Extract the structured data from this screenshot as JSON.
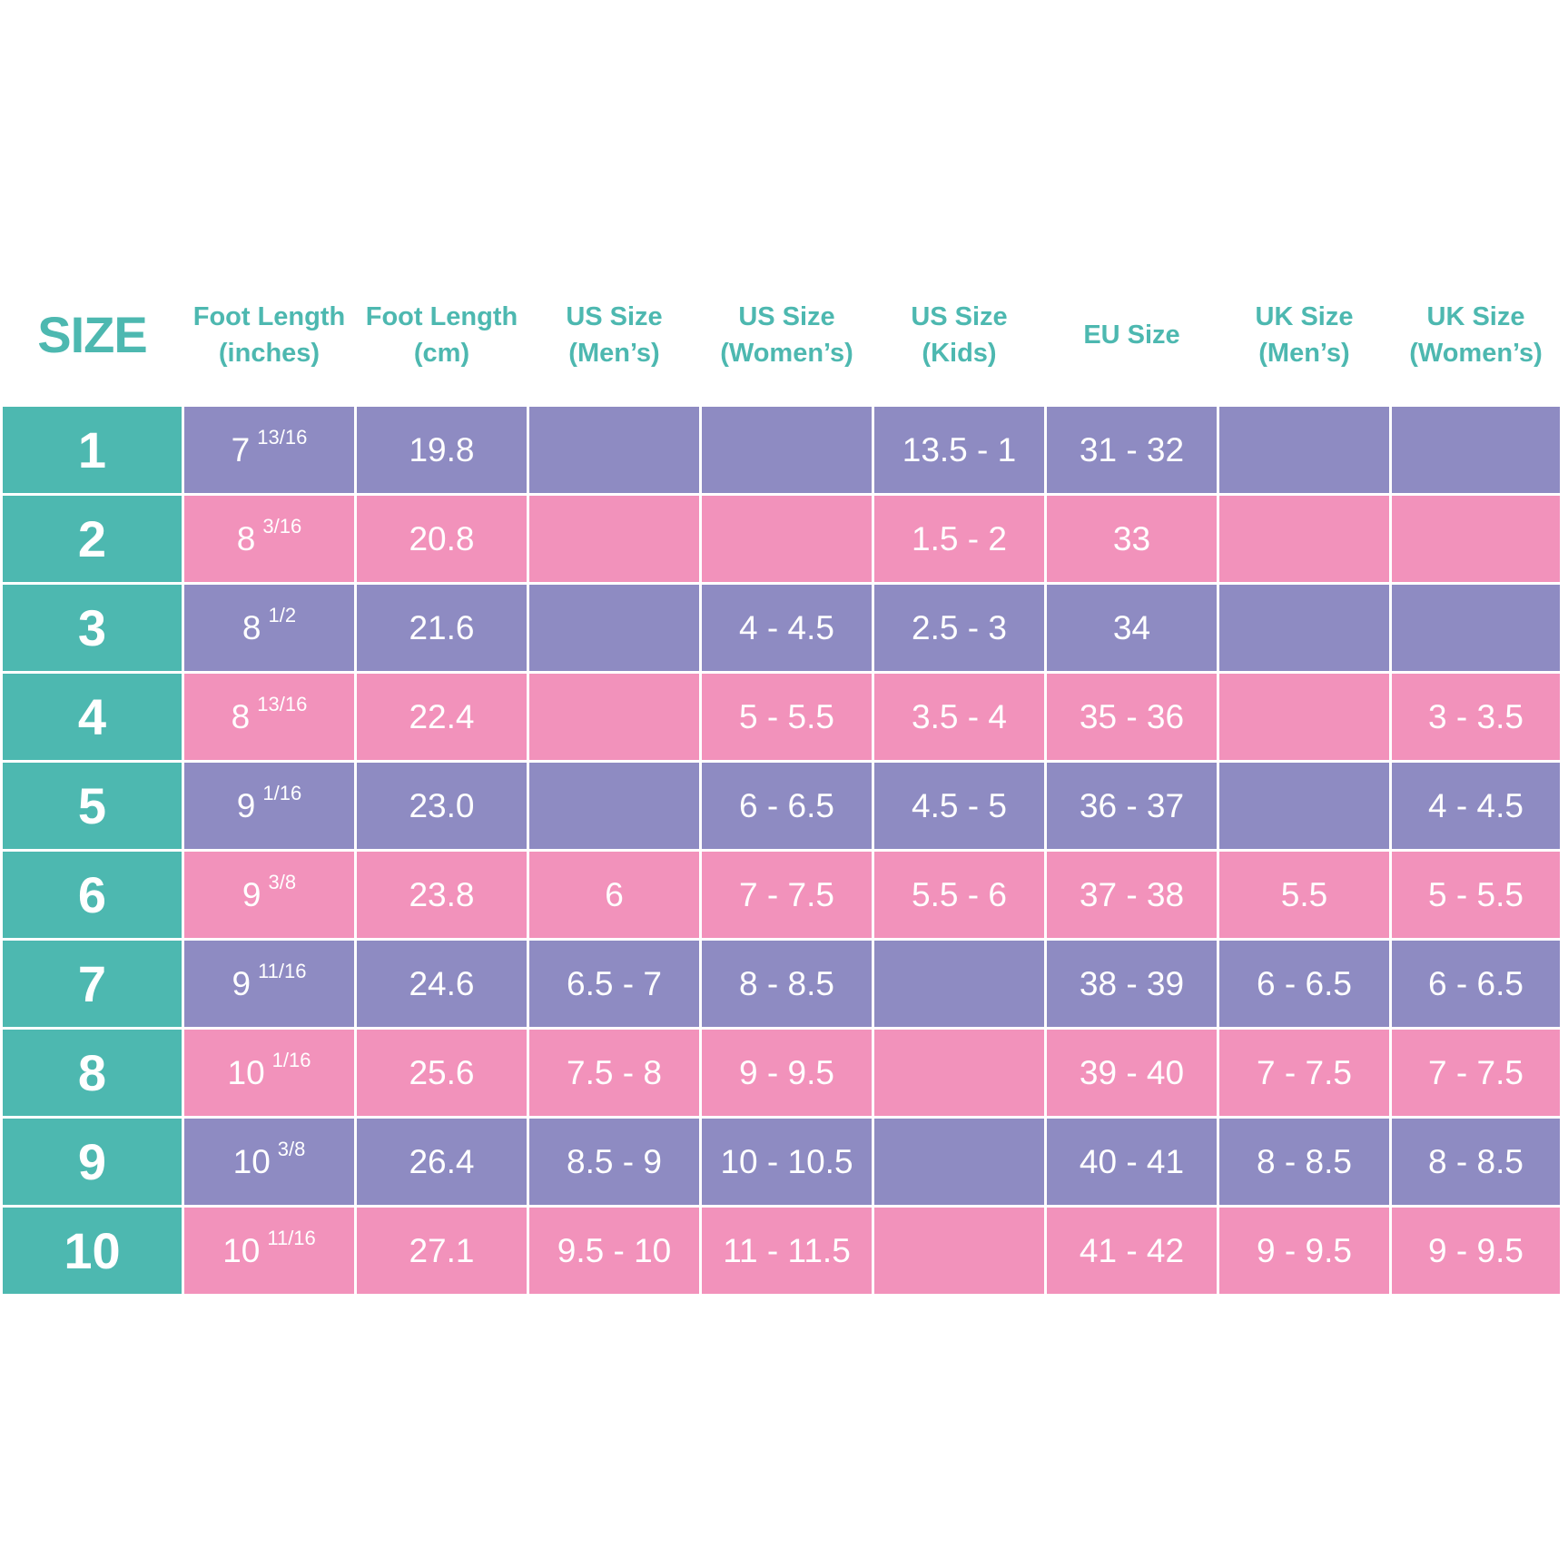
{
  "colors": {
    "teal": "#4db8b0",
    "purple": "#8e8bc2",
    "pink": "#f292bb"
  },
  "headers": [
    {
      "id": "size",
      "label": "SIZE"
    },
    {
      "id": "foot-length-inches",
      "label": "Foot Length\n(inches)"
    },
    {
      "id": "foot-length-cm",
      "label": "Foot Length\n(cm)"
    },
    {
      "id": "us-mens",
      "label": "US Size\n(Men’s)"
    },
    {
      "id": "us-womens",
      "label": "US Size\n(Women’s)"
    },
    {
      "id": "us-kids",
      "label": "US Size\n(Kids)"
    },
    {
      "id": "eu",
      "label": "EU Size"
    },
    {
      "id": "uk-mens",
      "label": "UK Size\n(Men’s)"
    },
    {
      "id": "uk-womens",
      "label": "UK Size\n(Women’s)"
    }
  ],
  "rows": [
    {
      "color": "purple",
      "size": "1",
      "inches_whole": "7",
      "inches_frac": "13/16",
      "cm": "19.8",
      "us_mens": "",
      "us_womens": "",
      "us_kids": "13.5 - 1",
      "eu": "31 - 32",
      "uk_mens": "",
      "uk_womens": ""
    },
    {
      "color": "pink",
      "size": "2",
      "inches_whole": "8",
      "inches_frac": "3/16",
      "cm": "20.8",
      "us_mens": "",
      "us_womens": "",
      "us_kids": "1.5 - 2",
      "eu": "33",
      "uk_mens": "",
      "uk_womens": ""
    },
    {
      "color": "purple",
      "size": "3",
      "inches_whole": "8",
      "inches_frac": "1/2",
      "cm": "21.6",
      "us_mens": "",
      "us_womens": "4 - 4.5",
      "us_kids": "2.5 - 3",
      "eu": "34",
      "uk_mens": "",
      "uk_womens": ""
    },
    {
      "color": "pink",
      "size": "4",
      "inches_whole": "8",
      "inches_frac": "13/16",
      "cm": "22.4",
      "us_mens": "",
      "us_womens": "5 - 5.5",
      "us_kids": "3.5 - 4",
      "eu": "35 - 36",
      "uk_mens": "",
      "uk_womens": "3 - 3.5"
    },
    {
      "color": "purple",
      "size": "5",
      "inches_whole": "9",
      "inches_frac": "1/16",
      "cm": "23.0",
      "us_mens": "",
      "us_womens": "6 - 6.5",
      "us_kids": "4.5 - 5",
      "eu": "36 - 37",
      "uk_mens": "",
      "uk_womens": "4 - 4.5"
    },
    {
      "color": "pink",
      "size": "6",
      "inches_whole": "9",
      "inches_frac": "3/8",
      "cm": "23.8",
      "us_mens": "6",
      "us_womens": "7 - 7.5",
      "us_kids": "5.5 - 6",
      "eu": "37 - 38",
      "uk_mens": "5.5",
      "uk_womens": "5 - 5.5"
    },
    {
      "color": "purple",
      "size": "7",
      "inches_whole": "9",
      "inches_frac": "11/16",
      "cm": "24.6",
      "us_mens": "6.5 - 7",
      "us_womens": "8 - 8.5",
      "us_kids": "",
      "eu": "38 - 39",
      "uk_mens": "6 - 6.5",
      "uk_womens": "6 - 6.5"
    },
    {
      "color": "pink",
      "size": "8",
      "inches_whole": "10",
      "inches_frac": "1/16",
      "cm": "25.6",
      "us_mens": "7.5 - 8",
      "us_womens": "9 - 9.5",
      "us_kids": "",
      "eu": "39 - 40",
      "uk_mens": "7 - 7.5",
      "uk_womens": "7 - 7.5"
    },
    {
      "color": "purple",
      "size": "9",
      "inches_whole": "10",
      "inches_frac": "3/8",
      "cm": "26.4",
      "us_mens": "8.5 - 9",
      "us_womens": "10 - 10.5",
      "us_kids": "",
      "eu": "40 - 41",
      "uk_mens": "8 - 8.5",
      "uk_womens": "8 - 8.5"
    },
    {
      "color": "pink",
      "size": "10",
      "inches_whole": "10",
      "inches_frac": "11/16",
      "cm": "27.1",
      "us_mens": "9.5 - 10",
      "us_womens": "11 - 11.5",
      "us_kids": "",
      "eu": "41 - 42",
      "uk_mens": "9 - 9.5",
      "uk_womens": "9 - 9.5"
    }
  ]
}
